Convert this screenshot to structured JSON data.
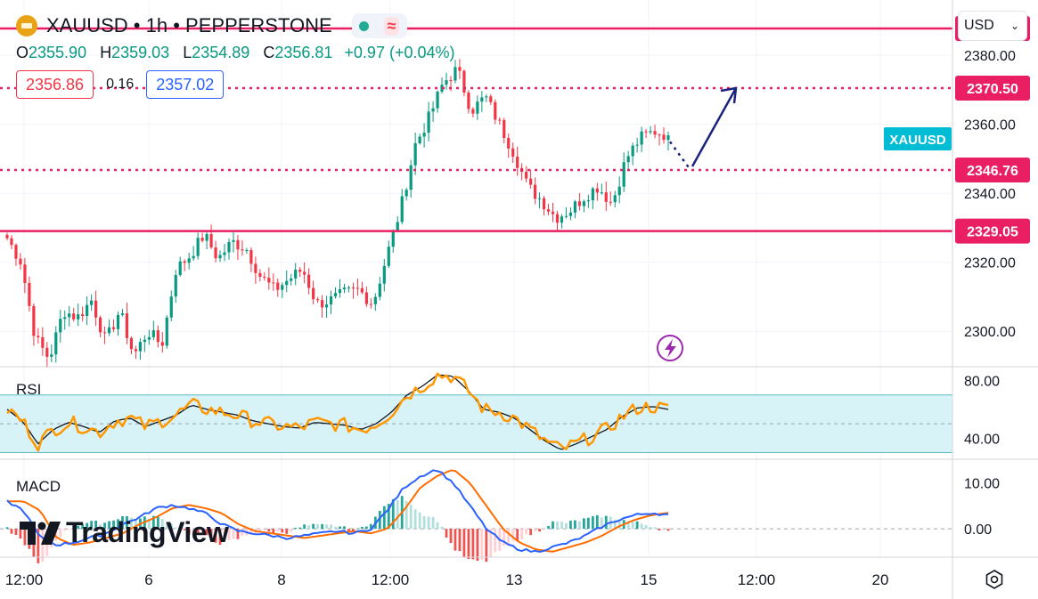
{
  "header": {
    "symbol": "XAUUSD",
    "interval": "1h",
    "exchange": "PEPPERSTONE",
    "title_sep": " • "
  },
  "ohlc": {
    "open_label": "O",
    "open": "2355.90",
    "high_label": "H",
    "high": "2359.03",
    "low_label": "L",
    "low": "2354.89",
    "close_label": "C",
    "close": "2356.81",
    "change": "+0.97 (+0.04%)"
  },
  "quote": {
    "bid": "2356.86",
    "spread": "0.16",
    "ask": "2357.02"
  },
  "currency_selector": {
    "value": "USD"
  },
  "branding": {
    "logo_text": "TradingView"
  },
  "colors": {
    "up": "#089981",
    "down": "#f23645",
    "level": "#e91e63",
    "rsi_line": "#ff9800",
    "ma_line": "#131722",
    "macd_line": "#2962ff",
    "signal_line": "#ff6d00",
    "arrow": "#1a237e",
    "badge": "#00bcd4"
  },
  "chart_data": [
    {
      "type": "candlestick",
      "series": [
        {
          "name": "XAUUSD"
        }
      ],
      "ylim": [
        2290,
        2395
      ],
      "yticks": [
        "2380.00",
        "2360.00",
        "2340.00",
        "2320.00",
        "2300.00"
      ],
      "xticks": [
        "12:00",
        "6",
        "8",
        "12:00",
        "13",
        "15",
        "12:00",
        "20"
      ],
      "symbol_badge": "XAUUSD",
      "last_price": 2356.81,
      "horizontal_levels": [
        {
          "value": 2387.77,
          "label": "2387.77",
          "style": "solid"
        },
        {
          "value": 2370.5,
          "label": "2370.50",
          "style": "dotted"
        },
        {
          "value": 2346.76,
          "label": "2346.76",
          "style": "dotted"
        },
        {
          "value": 2329.05,
          "label": "2329.05",
          "style": "solid"
        }
      ],
      "projection": {
        "from_price": 2356.5,
        "pullback_price": 2346.76,
        "target_price": 2370.5
      },
      "path_points": [
        2327,
        2320,
        2298,
        2292,
        2306,
        2304,
        2309,
        2297,
        2306,
        2293,
        2300,
        2296,
        2318,
        2322,
        2328,
        2321,
        2326,
        2324,
        2316,
        2312,
        2315,
        2318,
        2308,
        2309,
        2311,
        2312,
        2308,
        2322,
        2336,
        2354,
        2362,
        2372,
        2376,
        2364,
        2368,
        2360,
        2352,
        2342,
        2338,
        2333,
        2335,
        2339,
        2342,
        2337,
        2350,
        2356,
        2358,
        2356.81
      ]
    },
    {
      "type": "line",
      "title": "RSI",
      "ylim": [
        26,
        89
      ],
      "yticks": [
        "80.00",
        "40.00"
      ],
      "band": [
        30,
        70
      ],
      "series": [
        {
          "name": "RSI"
        },
        {
          "name": "RSI MA"
        }
      ],
      "path_points": [
        60,
        52,
        36,
        46,
        51,
        48,
        44,
        52,
        54,
        48,
        52,
        56,
        63,
        60,
        58,
        56,
        52,
        50,
        48,
        47,
        51,
        50,
        49,
        46,
        50,
        58,
        70,
        76,
        84,
        83,
        73,
        60,
        58,
        54,
        46,
        38,
        32,
        36,
        41,
        46,
        55,
        61,
        62,
        60
      ]
    },
    {
      "type": "line",
      "title": "MACD",
      "ylim": [
        -6,
        15
      ],
      "yticks": [
        "10.00",
        "0.00"
      ],
      "series": [
        {
          "name": "MACD"
        },
        {
          "name": "Signal"
        },
        {
          "name": "Histogram"
        }
      ],
      "path_points": [
        6,
        4,
        -2,
        -3.5,
        -3,
        -2,
        -1,
        1,
        2.5,
        4.5,
        5.2,
        4.5,
        3.4,
        1,
        -0.5,
        -1,
        -1.5,
        -2,
        -1.5,
        -1,
        -0.5,
        -1,
        0,
        4,
        9,
        11.5,
        13,
        10,
        5,
        0,
        -3,
        -4.5,
        -5,
        -4,
        -3,
        -1.5,
        0.5,
        2,
        3,
        3.5,
        3
      ]
    }
  ]
}
